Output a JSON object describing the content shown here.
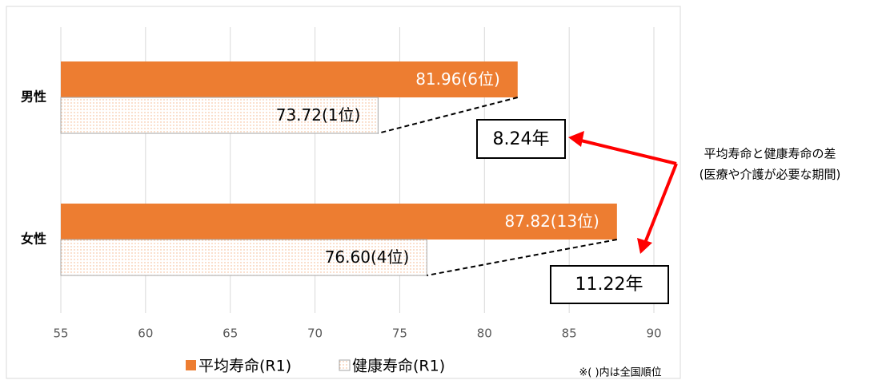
{
  "chart_data": {
    "type": "hbar",
    "categories": [
      "男性",
      "女性"
    ],
    "series": [
      {
        "name": "平均寿命(R1)",
        "color": "#ED7D31",
        "values": [
          81.96,
          87.82
        ],
        "value_labels": [
          "81.96(6位)",
          "87.82(13位)"
        ]
      },
      {
        "name": "健康寿命(R1)",
        "color": "#F4B183",
        "values": [
          73.72,
          76.6
        ],
        "value_labels": [
          "73.72(1位)",
          "76.60(4位)"
        ]
      }
    ],
    "xlim": [
      55,
      90
    ],
    "xticks": [
      55,
      60,
      65,
      70,
      75,
      80,
      85,
      90
    ],
    "grid": true,
    "annotations": [
      "8.24年",
      "11.22年",
      "平均寿命と健康寿命の差",
      "(医療や介護が必要な期間)"
    ],
    "note": "※( )内は全国順位"
  }
}
